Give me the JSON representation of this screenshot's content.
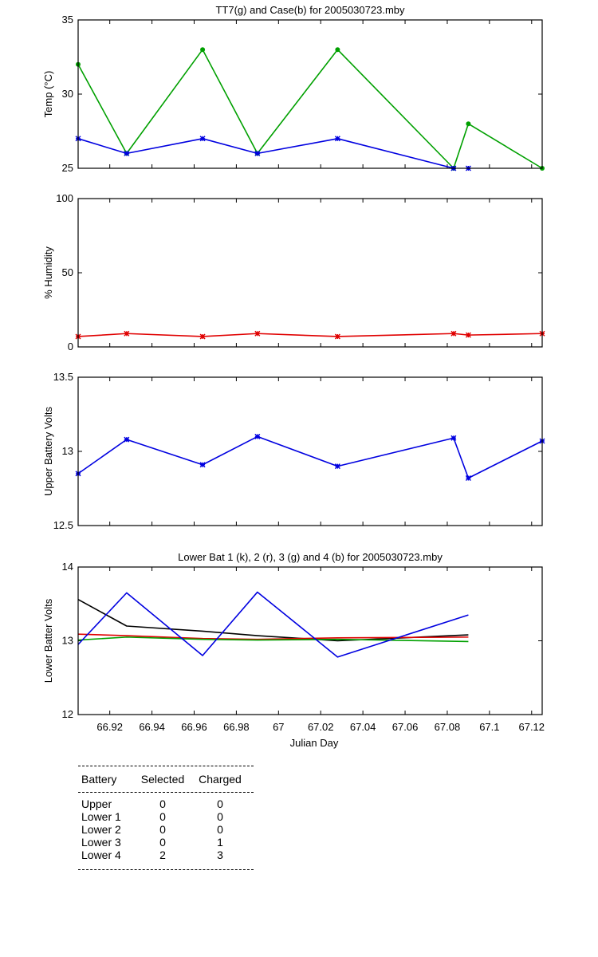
{
  "chart_data": [
    {
      "type": "line",
      "title": "TT7(g) and Case(b) for 2005030723.mby",
      "xlabel": "",
      "ylabel": "Temp  (°C)",
      "xlim": [
        66.905,
        67.125
      ],
      "ylim": [
        25,
        35
      ],
      "yticks": [
        25,
        30,
        35
      ],
      "grid": false,
      "series": [
        {
          "color": "#00a000",
          "marker": "dot",
          "x": [
            66.905,
            66.928,
            66.964,
            66.99,
            67.028,
            67.083,
            67.09,
            67.125
          ],
          "y": [
            32,
            26,
            33,
            26,
            33,
            25,
            28,
            25
          ]
        },
        {
          "color": "#0000e0",
          "marker": "star",
          "x": [
            66.905,
            66.928,
            66.964,
            66.99,
            67.028,
            67.083
          ],
          "y": [
            27,
            26,
            27,
            26,
            27,
            25
          ]
        },
        {
          "color": "#0000e0",
          "marker": "star",
          "x": [
            67.09
          ],
          "y": [
            25
          ]
        }
      ]
    },
    {
      "type": "line",
      "title": "",
      "xlabel": "",
      "ylabel": "% Humidity",
      "xlim": [
        66.905,
        67.125
      ],
      "ylim": [
        0,
        100
      ],
      "yticks": [
        0,
        50,
        100
      ],
      "grid": false,
      "series": [
        {
          "color": "#e00000",
          "marker": "star",
          "x": [
            66.905,
            66.928,
            66.964,
            66.99,
            67.028,
            67.083,
            67.09,
            67.125
          ],
          "y": [
            7,
            9,
            7,
            9,
            7,
            9,
            8,
            9
          ]
        }
      ]
    },
    {
      "type": "line",
      "title": "",
      "xlabel": "",
      "ylabel": "Upper Battery Volts",
      "xlim": [
        66.905,
        67.125
      ],
      "ylim": [
        12.5,
        13.5
      ],
      "yticks": [
        12.5,
        13,
        13.5
      ],
      "grid": false,
      "series": [
        {
          "color": "#0000e0",
          "marker": "star",
          "x": [
            66.905,
            66.928,
            66.964,
            66.99,
            67.028,
            67.083,
            67.09,
            67.125
          ],
          "y": [
            12.85,
            13.08,
            12.91,
            13.1,
            12.9,
            13.09,
            12.82,
            13.07
          ]
        }
      ]
    },
    {
      "type": "line",
      "title": "Lower Bat 1 (k), 2 (r), 3 (g) and 4 (b) for 2005030723.mby",
      "xlabel": "Julian Day",
      "ylabel": "Lower Batter Volts",
      "xlim": [
        66.905,
        67.125
      ],
      "ylim": [
        12,
        14
      ],
      "yticks": [
        12,
        13,
        14
      ],
      "xticks": [
        66.92,
        66.94,
        66.96,
        66.98,
        67,
        67.02,
        67.04,
        67.06,
        67.08,
        67.1,
        67.12
      ],
      "xticklabels": [
        "66.92",
        "66.94",
        "66.96",
        "66.98",
        "67",
        "67.02",
        "67.04",
        "67.06",
        "67.08",
        "67.1",
        "67.12"
      ],
      "grid": false,
      "series": [
        {
          "color": "#000000",
          "marker": "none",
          "x": [
            66.905,
            66.928,
            66.964,
            66.99,
            67.028,
            67.09
          ],
          "y": [
            13.56,
            13.2,
            13.13,
            13.07,
            13.0,
            13.08
          ]
        },
        {
          "color": "#e00000",
          "marker": "none",
          "x": [
            66.905,
            66.928,
            66.964,
            66.99,
            67.028,
            67.09
          ],
          "y": [
            13.09,
            13.07,
            13.03,
            13.02,
            13.04,
            13.05
          ]
        },
        {
          "color": "#00a000",
          "marker": "none",
          "x": [
            66.905,
            66.928,
            66.964,
            66.99,
            67.028,
            67.09
          ],
          "y": [
            13.01,
            13.05,
            13.02,
            13.01,
            13.02,
            12.99
          ]
        },
        {
          "color": "#0000e0",
          "marker": "none",
          "x": [
            66.905,
            66.928,
            66.964,
            66.99,
            67.028,
            67.09
          ],
          "y": [
            12.95,
            13.65,
            12.8,
            13.66,
            12.78,
            13.35
          ]
        }
      ]
    }
  ],
  "battery_table": {
    "headers": [
      "Battery",
      "Selected",
      "Charged"
    ],
    "rows": [
      {
        "battery": "Upper",
        "selected": "0",
        "charged": "0"
      },
      {
        "battery": "Lower 1",
        "selected": "0",
        "charged": "0"
      },
      {
        "battery": "Lower 2",
        "selected": "0",
        "charged": "0"
      },
      {
        "battery": "Lower 3",
        "selected": "0",
        "charged": "1"
      },
      {
        "battery": "Lower 4",
        "selected": "2",
        "charged": "3"
      }
    ]
  }
}
